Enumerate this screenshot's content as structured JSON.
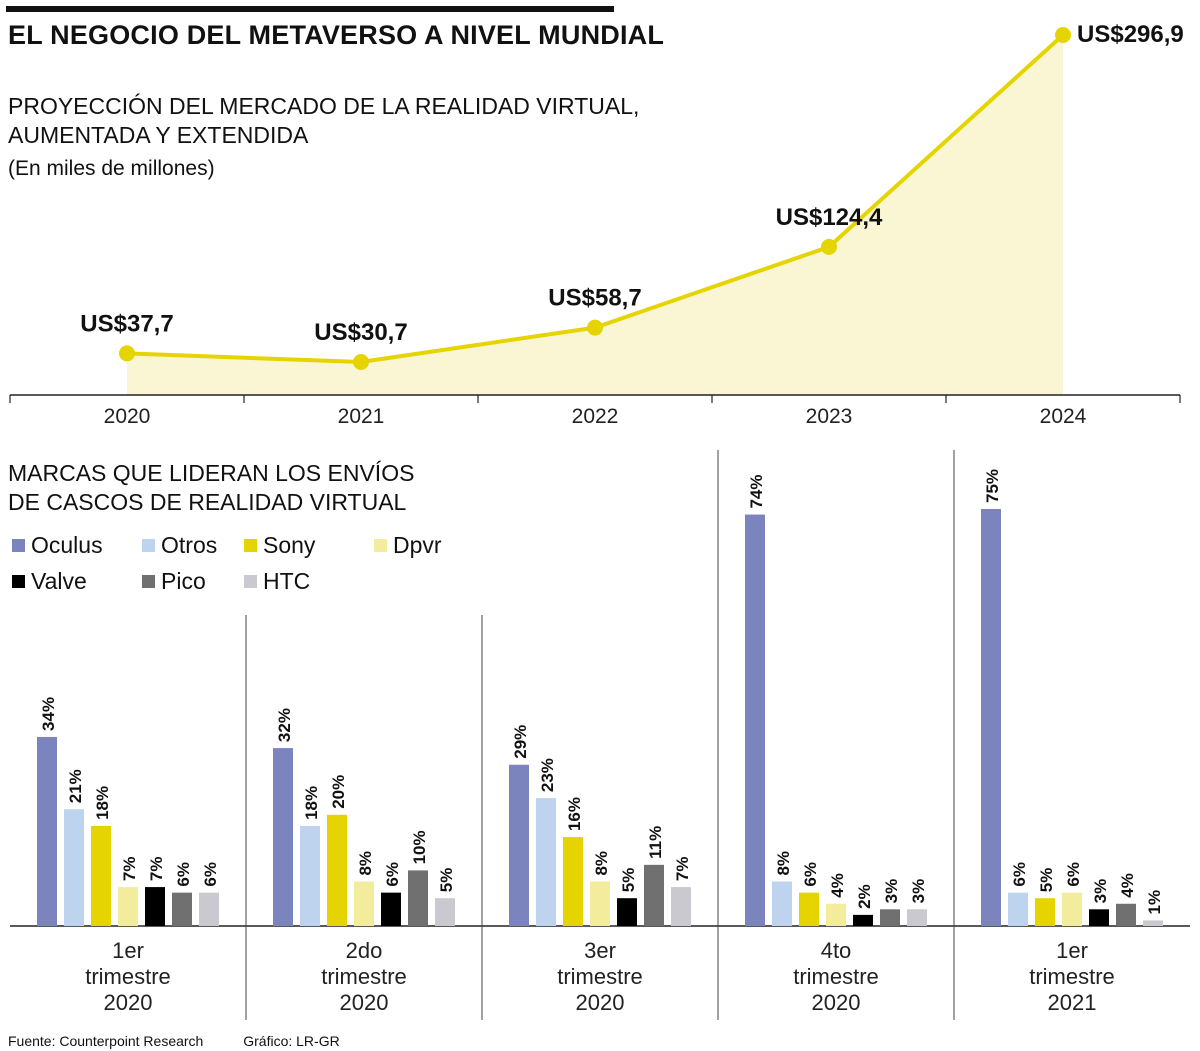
{
  "title": "EL NEGOCIO DEL METAVERSO A NIVEL MUNDIAL",
  "chart_data": [
    {
      "type": "area",
      "title": "PROYECCIÓN DEL MERCADO DE LA REALIDAD VIRTUAL, AUMENTADA Y EXTENDIDA",
      "title_line1": "PROYECCIÓN DEL MERCADO DE LA REALIDAD VIRTUAL,",
      "title_line2": "AUMENTADA Y EXTENDIDA",
      "unit_label": "(En miles de millones)",
      "categories": [
        "2020",
        "2021",
        "2022",
        "2023",
        "2024"
      ],
      "values": [
        37.7,
        30.7,
        58.7,
        124.4,
        296.9
      ],
      "data_labels": [
        "US$37,7",
        "US$30,7",
        "US$58,7",
        "US$124,4",
        "US$296,9"
      ],
      "ylim": [
        0,
        296.9
      ],
      "line_color": "#e5d400",
      "fill_color": "#faf6d4"
    },
    {
      "type": "bar",
      "title": "MARCAS QUE LIDERAN LOS ENVÍOS DE CASCOS DE REALIDAD VIRTUAL",
      "title_line1": "MARCAS QUE LIDERAN LOS ENVÍOS",
      "title_line2": "DE CASCOS DE REALIDAD VIRTUAL",
      "groups": [
        {
          "line1": "1er",
          "line2": "trimestre",
          "line3": "2020"
        },
        {
          "line1": "2do",
          "line2": "trimestre",
          "line3": "2020"
        },
        {
          "line1": "3er",
          "line2": "trimestre",
          "line3": "2020"
        },
        {
          "line1": "4to",
          "line2": "trimestre",
          "line3": "2020"
        },
        {
          "line1": "1er",
          "line2": "trimestre",
          "line3": "2021"
        }
      ],
      "series": [
        {
          "name": "Oculus",
          "color": "#7c84be",
          "values": [
            34,
            32,
            29,
            74,
            75
          ]
        },
        {
          "name": "Otros",
          "color": "#bed3ee",
          "values": [
            21,
            18,
            23,
            8,
            6
          ]
        },
        {
          "name": "Sony",
          "color": "#e5d400",
          "values": [
            18,
            20,
            16,
            6,
            5
          ]
        },
        {
          "name": "Dpvr",
          "color": "#f2ec9c",
          "values": [
            7,
            8,
            8,
            4,
            6
          ]
        },
        {
          "name": "Valve",
          "color": "#000000",
          "values": [
            7,
            6,
            5,
            2,
            3
          ]
        },
        {
          "name": "Pico",
          "color": "#707070",
          "values": [
            6,
            10,
            11,
            3,
            4
          ]
        },
        {
          "name": "HTC",
          "color": "#c9c9cf",
          "values": [
            6,
            5,
            7,
            3,
            1
          ]
        }
      ],
      "unit_suffix": "%"
    }
  ],
  "footer": {
    "source": "Fuente: Counterpoint Research",
    "credit": "Gráfico: LR-GR"
  }
}
